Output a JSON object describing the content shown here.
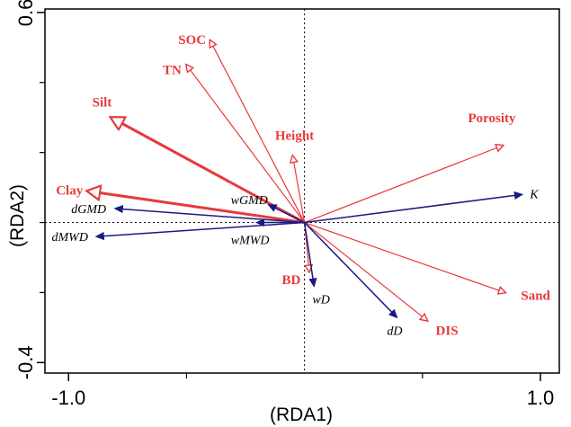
{
  "chart_data": {
    "type": "biplot",
    "xlabel": "(RDA1)",
    "ylabel": "(RDA2)",
    "xlim": [
      -1.1,
      1.08
    ],
    "ylim": [
      -0.43,
      0.61
    ],
    "x_ticks": [
      {
        "value": -1.0,
        "label": "-1.0"
      },
      {
        "value": 1.0,
        "label": "1.0"
      }
    ],
    "y_ticks": [
      {
        "value": 0.6,
        "label": "0.6"
      },
      {
        "value": -0.4,
        "label": "-0.4"
      }
    ],
    "minor_x_ticks": [
      -0.5,
      0.5
    ],
    "minor_y_ticks": [
      0.4,
      0.2,
      0,
      -0.2
    ],
    "reference_lines": {
      "x": 0,
      "y": 0,
      "style": "dotted"
    },
    "colors": {
      "environmental": "#e8393a",
      "response": "#1a1a80"
    },
    "environmental_vectors": [
      {
        "name": "SOC",
        "x": -0.4,
        "y": 0.52,
        "weight": 1.2
      },
      {
        "name": "TN",
        "x": -0.5,
        "y": 0.45,
        "weight": 1.2
      },
      {
        "name": "Silt",
        "x": -0.82,
        "y": 0.3,
        "weight": 3.0
      },
      {
        "name": "Height",
        "x": -0.05,
        "y": 0.19,
        "weight": 1.2
      },
      {
        "name": "Porosity",
        "x": 0.84,
        "y": 0.22,
        "weight": 1.2
      },
      {
        "name": "Clay",
        "x": -0.92,
        "y": 0.09,
        "weight": 3.0
      },
      {
        "name": "BD",
        "x": 0.02,
        "y": -0.14,
        "weight": 1.2
      },
      {
        "name": "DIS",
        "x": 0.52,
        "y": -0.28,
        "weight": 1.2
      },
      {
        "name": "Sand",
        "x": 0.85,
        "y": -0.2,
        "weight": 1.2
      }
    ],
    "response_vectors": [
      {
        "name": "K",
        "x": 0.92,
        "y": 0.08
      },
      {
        "name": "dGMD",
        "x": -0.8,
        "y": 0.04
      },
      {
        "name": "dMWD",
        "x": -0.88,
        "y": -0.04
      },
      {
        "name": "wGMD",
        "x": -0.15,
        "y": 0.05
      },
      {
        "name": "wMWD",
        "x": -0.2,
        "y": 0.0
      },
      {
        "name": "wD",
        "x": 0.04,
        "y": -0.18
      },
      {
        "name": "dD",
        "x": 0.39,
        "y": -0.27
      }
    ]
  }
}
